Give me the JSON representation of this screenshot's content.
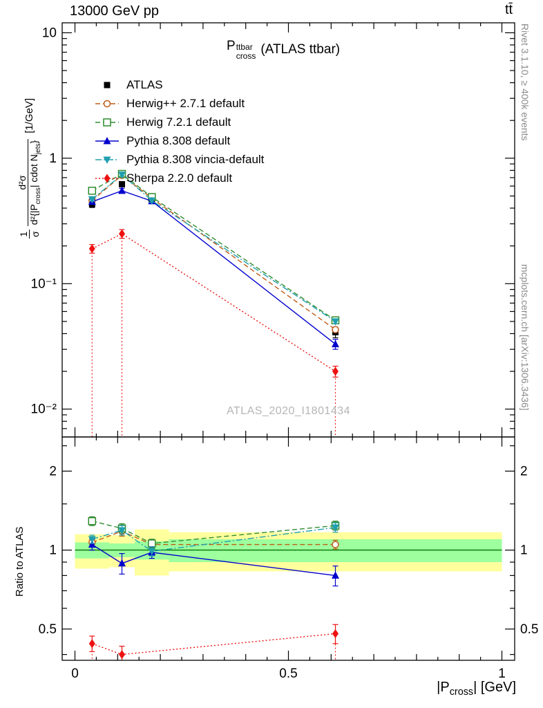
{
  "header": {
    "left": "13000 GeV pp",
    "right": "tt̄"
  },
  "side_notes": {
    "top_right": "Rivet 3.1.10, ≥ 400k events",
    "bottom_right": "mcplots.cern.ch [arXiv:1306.3436]"
  },
  "watermark": "ATLAS_2020_I1801434",
  "chart_data": {
    "type": "line",
    "title": "P_cross^ttbar (ATLAS ttbar)",
    "title_parts": {
      "base": "P",
      "sup": "ttbar",
      "sub": "cross",
      "rest": "(ATLAS ttbar)"
    },
    "xlabel": "|P_cross| [GeV]",
    "xlabel_parts": {
      "pre": "|P",
      "sub": "cross",
      "post": "| [GeV]"
    },
    "ylabel": "1/σ d²σ/d²{|P_cross| cdot N_jets} [1/GeV]",
    "ylabel_parts": {
      "frac1_num": "1",
      "frac1_den": "σ",
      "frac2_num": "d²σ",
      "frac2_den_pre": "d²{|P",
      "frac2_den_sub1": "cross",
      "frac2_den_mid": "| cdot N",
      "frac2_den_sub2": "jets",
      "frac2_den_post": "}",
      "units": "[1/GeV]"
    },
    "ratio_ylabel": "Ratio to ATLAS",
    "x": [
      0.04,
      0.11,
      0.18,
      0.61
    ],
    "series": [
      {
        "name": "ATLAS",
        "color": "#000000",
        "marker": "square",
        "line": "none",
        "values": [
          0.43,
          0.62,
          0.46,
          0.041
        ],
        "errors": [
          0.025,
          0.03,
          0.025,
          0.004
        ],
        "ratio": [
          null,
          null,
          null,
          null
        ],
        "ratio_errors": [
          null,
          null,
          null,
          null
        ]
      },
      {
        "name": "Herwig++ 2.7.1 default",
        "color": "#bf5b17",
        "marker": "circle-open",
        "line": "dashed",
        "values": [
          0.46,
          0.73,
          0.48,
          0.043
        ],
        "errors": [
          0.015,
          0.02,
          0.015,
          0.002
        ],
        "ratio": [
          1.07,
          1.18,
          1.05,
          1.05
        ],
        "ratio_errors": [
          0.04,
          0.05,
          0.04,
          0.04
        ]
      },
      {
        "name": "Herwig 7.2.1 default",
        "color": "#2e8b2e",
        "marker": "square-open",
        "line": "dashed",
        "values": [
          0.55,
          0.75,
          0.49,
          0.051
        ],
        "errors": [
          0.015,
          0.02,
          0.015,
          0.002
        ],
        "ratio": [
          1.29,
          1.21,
          1.06,
          1.24
        ],
        "ratio_errors": [
          0.05,
          0.05,
          0.04,
          0.05
        ]
      },
      {
        "name": "Pythia 8.308 default",
        "color": "#0000cd",
        "marker": "triangle-up",
        "line": "solid",
        "values": [
          0.45,
          0.55,
          0.455,
          0.033
        ],
        "errors": [
          0.02,
          0.025,
          0.02,
          0.003
        ],
        "ratio": [
          1.05,
          0.89,
          0.98,
          0.8
        ],
        "ratio_errors": [
          0.05,
          0.08,
          0.05,
          0.07
        ]
      },
      {
        "name": "Pythia 8.308 vincia-default",
        "color": "#1f9fae",
        "marker": "triangle-down",
        "line": "dashdot",
        "values": [
          0.47,
          0.74,
          0.46,
          0.05
        ],
        "errors": [
          0.015,
          0.02,
          0.015,
          0.002
        ],
        "ratio": [
          1.1,
          1.19,
          0.99,
          1.22
        ],
        "ratio_errors": [
          0.04,
          0.05,
          0.04,
          0.05
        ]
      },
      {
        "name": "Sherpa 2.2.0 default",
        "color": "#ee1111",
        "marker": "diamond",
        "line": "dotted",
        "drop_to_zero": true,
        "values": [
          0.19,
          0.25,
          null,
          0.02
        ],
        "errors": [
          0.015,
          0.02,
          null,
          0.002
        ],
        "ratio": [
          0.44,
          0.4,
          null,
          0.48
        ],
        "ratio_errors": [
          0.03,
          0.03,
          null,
          0.04
        ]
      }
    ],
    "atlas_bands": {
      "edges": [
        0.0,
        0.08,
        0.14,
        0.22,
        1.0
      ],
      "yellow": [
        [
          0.85,
          1.15
        ],
        [
          0.86,
          1.14
        ],
        [
          0.8,
          1.2
        ],
        [
          0.83,
          1.17
        ]
      ],
      "green": [
        [
          0.93,
          1.07
        ],
        [
          0.94,
          1.06
        ],
        [
          0.92,
          1.08
        ],
        [
          0.9,
          1.1
        ]
      ],
      "yellow_color": "#ffff9e",
      "green_color": "#9eff9e",
      "line_color": "#007700"
    },
    "axes": {
      "x": {
        "min": -0.03,
        "max": 1.03,
        "ticks": [
          {
            "v": 0,
            "label": "0"
          },
          {
            "v": 0.5,
            "label": "0.5"
          },
          {
            "v": 1,
            "label": "1"
          }
        ]
      },
      "y_main": {
        "scale": "log",
        "min": 0.006,
        "max": 12,
        "ticks": [
          {
            "v": 10,
            "label": "10"
          },
          {
            "v": 1,
            "label": "1"
          },
          {
            "v": 0.1,
            "label": "10⁻¹"
          },
          {
            "v": 0.01,
            "label": "10⁻²"
          }
        ]
      },
      "y_ratio": {
        "scale": "log",
        "min": 0.38,
        "max": 2.7,
        "ticks": [
          {
            "v": 0.5,
            "label": "0.5"
          },
          {
            "v": 1,
            "label": "1"
          },
          {
            "v": 2,
            "label": "2"
          }
        ],
        "minor": [
          0.4,
          0.6,
          0.7,
          0.8,
          0.9,
          1.5,
          2.5
        ]
      }
    }
  }
}
